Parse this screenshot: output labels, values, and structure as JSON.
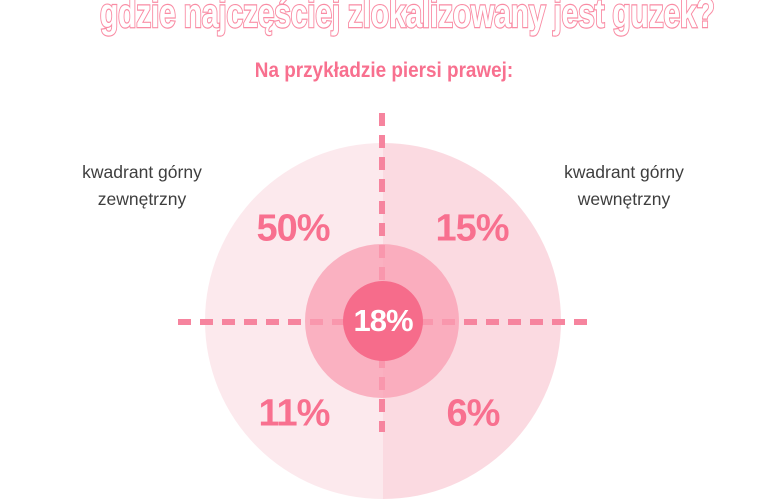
{
  "header": {
    "title": "gdzie najczęściej zlokalizowany jest guzek?",
    "subtitle": "Na przykładzie piersi prawej:"
  },
  "labels": {
    "upper_outer": {
      "line1": "kwadrant górny",
      "line2": "zewnętrzny"
    },
    "upper_inner": {
      "line1": "kwadrant górny",
      "line2": "wewnętrzny"
    }
  },
  "chart_data": {
    "type": "pie",
    "subtype": "quadrant-circle-diagram",
    "title": "gdzie najczęściej zlokalizowany jest guzek?",
    "subtitle": "Na przykładzie piersi prawej:",
    "unit": "%",
    "segments": [
      {
        "position": "upper-outer",
        "label": "kwadrant górny zewnętrzny",
        "value": 50,
        "display": "50%"
      },
      {
        "position": "upper-inner",
        "label": "kwadrant górny wewnętrzny",
        "value": 15,
        "display": "15%"
      },
      {
        "position": "lower-outer",
        "label": "",
        "value": 11,
        "display": "11%"
      },
      {
        "position": "lower-inner",
        "label": "",
        "value": 6,
        "display": "6%"
      },
      {
        "position": "central",
        "label": "",
        "value": 18,
        "display": "18%"
      }
    ],
    "layout": {
      "legend": "none",
      "grid": "dashed crosshair through circle center",
      "note": "concentric circles: outer split light pink halves, translucent mid ring, solid center disc"
    }
  },
  "colors": {
    "accent_pink_text": "#F8708F",
    "title_outline": "#F98CA4",
    "dash_line": "#F6849E",
    "outer_circle_left": "#FCE9ED",
    "outer_circle_right": "#FBDAE1",
    "middle_circle": "#FAADBE",
    "center_circle": "#F66C8B",
    "label_text": "#3E3E3E",
    "background": "#FFFFFF"
  }
}
